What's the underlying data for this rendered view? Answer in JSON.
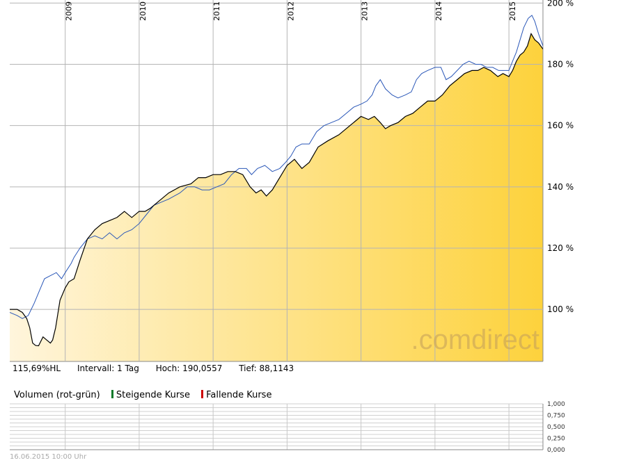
{
  "info": {
    "hl_label": "115,69%HL",
    "interval_label": "Intervall: 1 Tag",
    "high_label": "Hoch: 190,0557",
    "low_label": "Tief: 88,1143"
  },
  "volume_legend": {
    "title": "Volumen (rot-grün)",
    "rising": "Steigende Kurse",
    "falling": "Fallende Kurse",
    "rising_color": "#0a7a2a",
    "falling_color": "#cc0000"
  },
  "footer": {
    "timestamp": "16.06.2015 10:00 Uhr"
  },
  "watermark": ".comdirect",
  "colors": {
    "main_series": "#000000",
    "compare_series": "#2a57b8",
    "fill_start": "#fff5dc",
    "fill_end": "#fdd23c",
    "grid": "#b4b4b4"
  },
  "chart_data": {
    "type": "line",
    "x_ticks": [
      "2009",
      "2010",
      "2011",
      "2012",
      "2013",
      "2014",
      "2015"
    ],
    "y_ticks": [
      "200 %",
      "180 %",
      "160 %",
      "140 %",
      "120 %",
      "100 %"
    ],
    "ylim": [
      83,
      201
    ],
    "xlim": [
      2008.25,
      2015.46
    ],
    "scale": "linear",
    "series": [
      {
        "values": [
          [
            2008.25,
            100
          ],
          [
            2008.35,
            100
          ],
          [
            2008.42,
            99
          ],
          [
            2008.48,
            97
          ],
          [
            2008.52,
            94
          ],
          [
            2008.56,
            89
          ],
          [
            2008.6,
            88.2
          ],
          [
            2008.64,
            88.1
          ],
          [
            2008.7,
            91
          ],
          [
            2008.75,
            90
          ],
          [
            2008.8,
            89
          ],
          [
            2008.83,
            90
          ],
          [
            2008.87,
            94
          ],
          [
            2008.93,
            103
          ],
          [
            2009.0,
            107
          ],
          [
            2009.05,
            109
          ],
          [
            2009.12,
            110
          ],
          [
            2009.2,
            116
          ],
          [
            2009.3,
            123
          ],
          [
            2009.4,
            126
          ],
          [
            2009.5,
            128
          ],
          [
            2009.6,
            129
          ],
          [
            2009.7,
            130
          ],
          [
            2009.8,
            132
          ],
          [
            2009.9,
            130
          ],
          [
            2010.0,
            132
          ],
          [
            2010.08,
            132
          ],
          [
            2010.15,
            133
          ],
          [
            2010.25,
            135
          ],
          [
            2010.4,
            138
          ],
          [
            2010.55,
            140
          ],
          [
            2010.7,
            141
          ],
          [
            2010.8,
            143
          ],
          [
            2010.9,
            143
          ],
          [
            2011.0,
            144
          ],
          [
            2011.1,
            144
          ],
          [
            2011.2,
            145
          ],
          [
            2011.3,
            145
          ],
          [
            2011.4,
            144
          ],
          [
            2011.5,
            140
          ],
          [
            2011.58,
            138
          ],
          [
            2011.65,
            139
          ],
          [
            2011.72,
            137
          ],
          [
            2011.8,
            139
          ],
          [
            2011.9,
            143
          ],
          [
            2012.0,
            147
          ],
          [
            2012.1,
            149
          ],
          [
            2012.2,
            146
          ],
          [
            2012.3,
            148
          ],
          [
            2012.42,
            153
          ],
          [
            2012.55,
            155
          ],
          [
            2012.7,
            157
          ],
          [
            2012.85,
            160
          ],
          [
            2013.0,
            163
          ],
          [
            2013.1,
            162
          ],
          [
            2013.18,
            163
          ],
          [
            2013.26,
            161
          ],
          [
            2013.33,
            159
          ],
          [
            2013.4,
            160
          ],
          [
            2013.5,
            161
          ],
          [
            2013.6,
            163
          ],
          [
            2013.7,
            164
          ],
          [
            2013.8,
            166
          ],
          [
            2013.9,
            168
          ],
          [
            2014.0,
            168
          ],
          [
            2014.1,
            170
          ],
          [
            2014.2,
            173
          ],
          [
            2014.3,
            175
          ],
          [
            2014.4,
            177
          ],
          [
            2014.5,
            178
          ],
          [
            2014.58,
            178
          ],
          [
            2014.66,
            179
          ],
          [
            2014.75,
            178
          ],
          [
            2014.85,
            176
          ],
          [
            2014.92,
            177
          ],
          [
            2015.0,
            176
          ],
          [
            2015.05,
            178
          ],
          [
            2015.1,
            181
          ],
          [
            2015.15,
            183
          ],
          [
            2015.2,
            184
          ],
          [
            2015.25,
            186
          ],
          [
            2015.3,
            190
          ],
          [
            2015.35,
            188
          ],
          [
            2015.4,
            187
          ],
          [
            2015.46,
            185
          ]
        ]
      },
      {
        "values": [
          [
            2008.25,
            99
          ],
          [
            2008.35,
            98
          ],
          [
            2008.42,
            97
          ],
          [
            2008.5,
            98
          ],
          [
            2008.58,
            102
          ],
          [
            2008.65,
            106
          ],
          [
            2008.72,
            110
          ],
          [
            2008.8,
            111
          ],
          [
            2008.88,
            112
          ],
          [
            2008.95,
            110
          ],
          [
            2009.0,
            112
          ],
          [
            2009.08,
            115
          ],
          [
            2009.12,
            117
          ],
          [
            2009.2,
            120
          ],
          [
            2009.3,
            123
          ],
          [
            2009.4,
            124
          ],
          [
            2009.5,
            123
          ],
          [
            2009.6,
            125
          ],
          [
            2009.7,
            123
          ],
          [
            2009.8,
            125
          ],
          [
            2009.9,
            126
          ],
          [
            2010.0,
            128
          ],
          [
            2010.1,
            131
          ],
          [
            2010.2,
            134
          ],
          [
            2010.3,
            135
          ],
          [
            2010.4,
            136
          ],
          [
            2010.55,
            138
          ],
          [
            2010.65,
            140
          ],
          [
            2010.75,
            140
          ],
          [
            2010.85,
            139
          ],
          [
            2010.95,
            139
          ],
          [
            2011.05,
            140
          ],
          [
            2011.15,
            141
          ],
          [
            2011.25,
            144
          ],
          [
            2011.35,
            146
          ],
          [
            2011.45,
            146
          ],
          [
            2011.52,
            144
          ],
          [
            2011.6,
            146
          ],
          [
            2011.7,
            147
          ],
          [
            2011.8,
            145
          ],
          [
            2011.9,
            146
          ],
          [
            2011.98,
            148
          ],
          [
            2012.05,
            150
          ],
          [
            2012.12,
            153
          ],
          [
            2012.2,
            154
          ],
          [
            2012.3,
            154
          ],
          [
            2012.4,
            158
          ],
          [
            2012.5,
            160
          ],
          [
            2012.6,
            161
          ],
          [
            2012.7,
            162
          ],
          [
            2012.8,
            164
          ],
          [
            2012.9,
            166
          ],
          [
            2013.0,
            167
          ],
          [
            2013.08,
            168
          ],
          [
            2013.15,
            170
          ],
          [
            2013.2,
            173
          ],
          [
            2013.26,
            175
          ],
          [
            2013.33,
            172
          ],
          [
            2013.42,
            170
          ],
          [
            2013.5,
            169
          ],
          [
            2013.6,
            170
          ],
          [
            2013.68,
            171
          ],
          [
            2013.75,
            175
          ],
          [
            2013.82,
            177
          ],
          [
            2013.9,
            178
          ],
          [
            2014.0,
            179
          ],
          [
            2014.08,
            179
          ],
          [
            2014.15,
            175
          ],
          [
            2014.22,
            176
          ],
          [
            2014.3,
            178
          ],
          [
            2014.38,
            180
          ],
          [
            2014.46,
            181
          ],
          [
            2014.55,
            180
          ],
          [
            2014.62,
            180
          ],
          [
            2014.7,
            179
          ],
          [
            2014.78,
            179
          ],
          [
            2014.86,
            178
          ],
          [
            2014.93,
            178
          ],
          [
            2015.0,
            178
          ],
          [
            2015.05,
            181
          ],
          [
            2015.1,
            184
          ],
          [
            2015.15,
            188
          ],
          [
            2015.2,
            192
          ],
          [
            2015.26,
            195
          ],
          [
            2015.31,
            196
          ],
          [
            2015.35,
            194
          ],
          [
            2015.4,
            190
          ],
          [
            2015.46,
            186
          ]
        ]
      }
    ]
  }
}
